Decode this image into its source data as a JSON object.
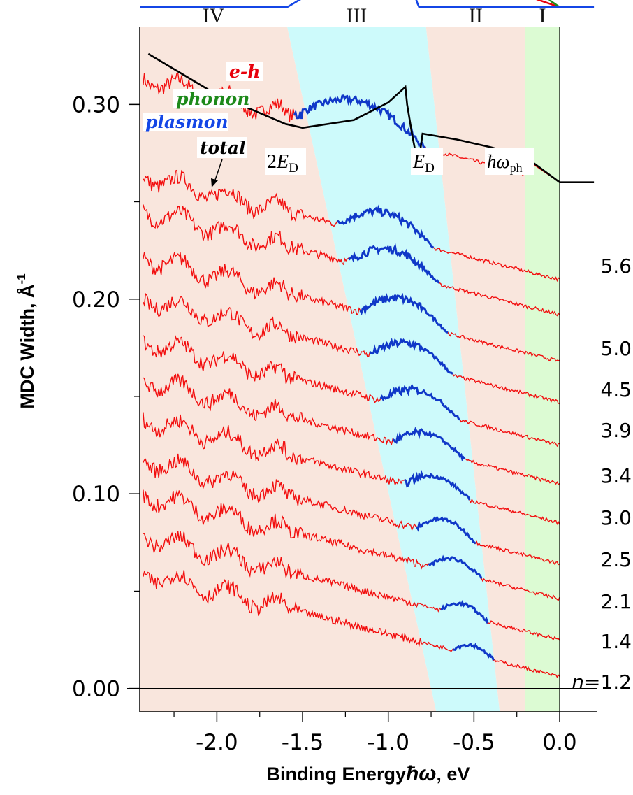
{
  "chart_data": {
    "type": "line",
    "title": "",
    "xlabel_main": "Binding Energy",
    "xlabel_symbol": "ħω",
    "xlabel_unit": ", eV",
    "ylabel": "MDC Width, Å",
    "ylabel_sup": "-1",
    "xlim": [
      -2.45,
      0.22
    ],
    "ylim": [
      -0.012,
      0.34
    ],
    "x_ticks": [
      -2.0,
      -1.5,
      -1.0,
      -0.5,
      0.0
    ],
    "x_tick_labels": [
      "-2.0",
      "-1.5",
      "-1.0",
      "-0.5",
      "0.0"
    ],
    "y_ticks": [
      0.0,
      0.1,
      0.2,
      0.3
    ],
    "y_tick_labels": [
      "0.00",
      "0.10",
      "0.20",
      "0.30"
    ],
    "grid": false,
    "regions": [
      {
        "label": "IV",
        "color": "#f9e6dd"
      },
      {
        "label": "III",
        "color": "#cdfafb"
      },
      {
        "label": "II",
        "color": "#f9e6dd"
      },
      {
        "label": "I",
        "color": "#dcfbd3"
      }
    ],
    "region_boundaries_top": [
      -2.45,
      -1.59,
      -0.78,
      -0.2,
      0.0
    ],
    "region_boundaries_bottom": [
      -2.45,
      -0.72,
      -0.35,
      -0.2,
      0.0
    ],
    "component_curves": [
      {
        "name": "e-h",
        "color": "#e8000b",
        "x": [
          -2.4,
          -2.0,
          -1.6,
          -1.2,
          -1.0,
          -0.9,
          -0.84,
          -0.82,
          -0.8,
          -0.6,
          -0.4,
          -0.2,
          0.0
        ],
        "y_offset": [
          0.125,
          0.098,
          0.07,
          0.04,
          0.03,
          0.025,
          0.023,
          0.023,
          0.034,
          0.026,
          0.016,
          0.006,
          0.0
        ]
      },
      {
        "name": "phonon",
        "color": "#1e8a1b",
        "x": [
          -2.45,
          -0.22,
          -0.18,
          -0.15,
          -0.1,
          -0.05,
          0.0
        ],
        "y_offset": [
          0.011,
          0.011,
          0.011,
          0.009,
          0.007,
          0.003,
          0.0
        ]
      },
      {
        "name": "plasmon",
        "color": "#1446e6",
        "x": [
          -2.45,
          -1.59,
          -1.3,
          -1.1,
          -0.92,
          -0.89,
          -0.86,
          -0.83,
          -0.82,
          0.2
        ],
        "y_offset": [
          0.0,
          0.0,
          0.015,
          0.03,
          0.038,
          0.025,
          0.01,
          0.002,
          0.0,
          0.0
        ]
      }
    ],
    "component_baseline": 0.35,
    "total_fit": {
      "name": "total",
      "color": "#000000",
      "x": [
        -2.4,
        -2.0,
        -1.6,
        -1.5,
        -1.2,
        -1.0,
        -0.9,
        -0.89,
        -0.86,
        -0.84,
        -0.82,
        -0.8,
        -0.6,
        -0.4,
        -0.2,
        0.0,
        0.2
      ],
      "y": [
        0.326,
        0.305,
        0.29,
        0.288,
        0.292,
        0.301,
        0.309,
        0.3,
        0.284,
        0.275,
        0.272,
        0.285,
        0.282,
        0.278,
        0.273,
        0.26,
        0.26
      ]
    },
    "series": [
      {
        "name": "5.6",
        "y_end": 0.26,
        "hump_x": [
          -1.55,
          -0.78
        ],
        "hump_amp": 0.016
      },
      {
        "name": "5.0",
        "y_end": 0.21,
        "hump_x": [
          -1.3,
          -0.73
        ],
        "hump_amp": 0.012
      },
      {
        "name": "4.5",
        "y_end": 0.192,
        "hump_x": [
          -1.24,
          -0.7
        ],
        "hump_amp": 0.012
      },
      {
        "name": "3.9",
        "y_end": 0.168,
        "hump_x": [
          -1.17,
          -0.65
        ],
        "hump_amp": 0.012
      },
      {
        "name": "3.4",
        "y_end": 0.147,
        "hump_x": [
          -1.11,
          -0.62
        ],
        "hump_amp": 0.011
      },
      {
        "name": "3.0",
        "y_end": 0.125,
        "hump_x": [
          -1.05,
          -0.58
        ],
        "hump_amp": 0.01
      },
      {
        "name": "2.5",
        "y_end": 0.105,
        "hump_x": [
          -0.98,
          -0.55
        ],
        "hump_amp": 0.009
      },
      {
        "name": "2.1",
        "y_end": 0.085,
        "hump_x": [
          -0.91,
          -0.52
        ],
        "hump_amp": 0.008
      },
      {
        "name": "1.4",
        "y_end": 0.064,
        "hump_x": [
          -0.84,
          -0.49
        ],
        "hump_amp": 0.008
      },
      {
        "name": "1.2",
        "y_end": 0.046,
        "hump_x": [
          -0.77,
          -0.45
        ],
        "hump_amp": 0.007
      },
      {
        "name": "",
        "y_end": 0.025,
        "hump_x": [
          -0.7,
          -0.42
        ],
        "hump_amp": 0.006
      },
      {
        "name": "",
        "y_end": 0.006,
        "hump_x": [
          -0.63,
          -0.38
        ],
        "hump_amp": 0.005
      }
    ],
    "series_colors": {
      "data": "#f20f0f",
      "hump": "#1038c8"
    },
    "density_prefix": "n=",
    "annotations": {
      "total": "total",
      "e_h": "e-h",
      "phonon": "phonon",
      "plasmon": "plasmon",
      "two_ed_pre": "2",
      "ed_sym": "E",
      "ed_sub": "D",
      "hw_sym": "ħω",
      "hw_sub": "ph"
    }
  }
}
